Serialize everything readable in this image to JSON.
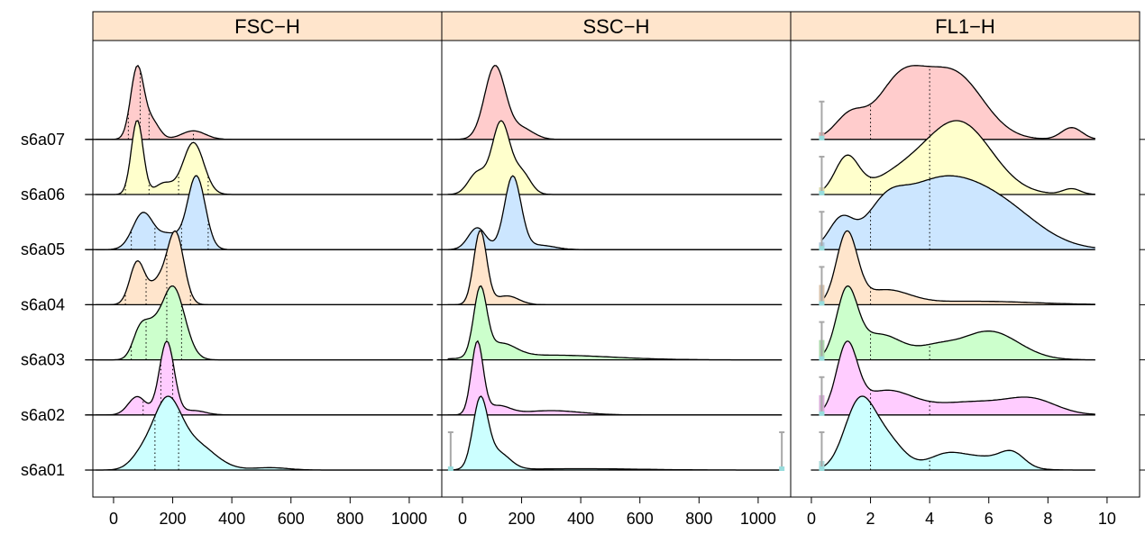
{
  "chart_data": {
    "type": "density-ridgeline",
    "strip_color": "#ffe5cc",
    "rows": [
      "s6a01",
      "s6a02",
      "s6a03",
      "s6a04",
      "s6a05",
      "s6a06",
      "s6a07"
    ],
    "row_colors": {
      "s6a01": "#ccffff",
      "s6a02": "#ffccff",
      "s6a03": "#ccffcc",
      "s6a04": "#ffe5cc",
      "s6a05": "#cce6ff",
      "s6a06": "#ffffcc",
      "s6a07": "#ffcccc"
    },
    "panels": [
      {
        "name": "FSC−H",
        "xlim": [
          -70,
          1110
        ],
        "xticks": [
          0,
          200,
          400,
          600,
          800,
          1000
        ],
        "x_range": [
          -60,
          1080
        ],
        "rows": {
          "s6a01": {
            "peaks": [
              [
                180,
                1.0,
                45
              ],
              [
                270,
                0.45,
                70
              ],
              [
                100,
                0.25,
                40
              ],
              [
                530,
                0.04,
                60
              ]
            ],
            "quantiles": [
              140,
              220
            ]
          },
          "s6a02": {
            "peaks": [
              [
                180,
                1.0,
                25
              ],
              [
                80,
                0.25,
                30
              ],
              [
                270,
                0.06,
                40
              ]
            ],
            "quantiles": [
              100,
              160,
              200
            ]
          },
          "s6a03": {
            "peaks": [
              [
                200,
                1.0,
                40
              ],
              [
                90,
                0.4,
                25
              ],
              [
                130,
                0.25,
                25
              ]
            ],
            "quantiles": [
              60,
              110,
              180,
              230
            ]
          },
          "s6a04": {
            "peaks": [
              [
                210,
                1.0,
                28
              ],
              [
                80,
                0.6,
                25
              ],
              [
                150,
                0.3,
                30
              ]
            ],
            "quantiles": [
              40,
              110,
              180,
              260
            ]
          },
          "s6a05": {
            "peaks": [
              [
                280,
                1.0,
                30
              ],
              [
                100,
                0.5,
                35
              ],
              [
                190,
                0.2,
                35
              ]
            ],
            "quantiles": [
              60,
              140,
              230,
              320
            ]
          },
          "s6a06": {
            "peaks": [
              [
                80,
                1.0,
                20
              ],
              [
                270,
                0.7,
                35
              ],
              [
                170,
                0.15,
                30
              ]
            ],
            "quantiles": [
              40,
              120,
              220,
              320
            ]
          },
          "s6a07": {
            "peaks": [
              [
                80,
                1.0,
                22
              ],
              [
                130,
                0.25,
                25
              ],
              [
                270,
                0.12,
                40
              ]
            ],
            "quantiles": [
              50,
              90,
              120,
              270
            ]
          }
        }
      },
      {
        "name": "SSC−H",
        "xlim": [
          -70,
          1110
        ],
        "xticks": [
          0,
          200,
          400,
          600,
          800,
          1000
        ],
        "x_range": [
          -50,
          1080
        ],
        "rows": {
          "s6a01": {
            "peaks": [
              [
                60,
                1.0,
                25
              ],
              [
                120,
                0.25,
                40
              ],
              [
                400,
                0.02,
                200
              ]
            ],
            "quantiles": []
          },
          "s6a02": {
            "peaks": [
              [
                50,
                1.0,
                20
              ],
              [
                120,
                0.12,
                40
              ],
              [
                300,
                0.06,
                100
              ]
            ],
            "quantiles": []
          },
          "s6a03": {
            "peaks": [
              [
                60,
                1.0,
                22
              ],
              [
                130,
                0.2,
                50
              ],
              [
                300,
                0.07,
                200
              ]
            ],
            "quantiles": []
          },
          "s6a04": {
            "peaks": [
              [
                60,
                1.0,
                22
              ],
              [
                150,
                0.12,
                40
              ]
            ],
            "quantiles": []
          },
          "s6a05": {
            "peaks": [
              [
                170,
                1.0,
                28
              ],
              [
                50,
                0.3,
                30
              ],
              [
                260,
                0.06,
                50
              ]
            ],
            "quantiles": []
          },
          "s6a06": {
            "peaks": [
              [
                130,
                1.0,
                30
              ],
              [
                50,
                0.3,
                30
              ],
              [
                200,
                0.3,
                30
              ]
            ],
            "quantiles": []
          },
          "s6a07": {
            "peaks": [
              [
                110,
                1.0,
                35
              ],
              [
                200,
                0.15,
                40
              ]
            ],
            "quantiles": []
          }
        }
      },
      {
        "name": "FL1−H",
        "xlim": [
          -0.7,
          11.1
        ],
        "xticks": [
          0,
          2,
          4,
          6,
          8,
          10
        ],
        "x_range": [
          0.35,
          9.6
        ],
        "rows": {
          "s6a01": {
            "peaks": [
              [
                1.6,
                1.0,
                0.5
              ],
              [
                2.5,
                0.5,
                0.6
              ],
              [
                4.5,
                0.2,
                0.6
              ],
              [
                5.8,
                0.2,
                0.9
              ],
              [
                6.8,
                0.2,
                0.4
              ]
            ],
            "quantiles": [
              2,
              4
            ]
          },
          "s6a02": {
            "peaks": [
              [
                1.2,
                1.0,
                0.35
              ],
              [
                2.5,
                0.35,
                0.9
              ],
              [
                5.5,
                0.2,
                1.5
              ],
              [
                7.5,
                0.18,
                0.8
              ]
            ],
            "quantiles": [
              2,
              4
            ]
          },
          "s6a03": {
            "peaks": [
              [
                1.2,
                1.0,
                0.35
              ],
              [
                2.3,
                0.4,
                0.8
              ],
              [
                6.0,
                0.45,
                1.0
              ],
              [
                4.2,
                0.15,
                0.6
              ]
            ],
            "quantiles": [
              2,
              4
            ]
          },
          "s6a04": {
            "peaks": [
              [
                1.2,
                1.0,
                0.35
              ],
              [
                2.5,
                0.2,
                0.8
              ],
              [
                5.5,
                0.05,
                2.0
              ]
            ],
            "quantiles": [
              2
            ]
          },
          "s6a05": {
            "peaks": [
              [
                4.2,
                1.0,
                1.5
              ],
              [
                1.0,
                0.4,
                0.4
              ],
              [
                6.5,
                0.5,
                1.3
              ],
              [
                2.5,
                0.35,
                0.6
              ]
            ],
            "quantiles": [
              2,
              4
            ]
          },
          "s6a06": {
            "peaks": [
              [
                5.0,
                1.0,
                1.1
              ],
              [
                1.2,
                0.5,
                0.4
              ],
              [
                3.0,
                0.25,
                1.0
              ],
              [
                8.8,
                0.08,
                0.3
              ]
            ],
            "quantiles": [
              2,
              4
            ]
          },
          "s6a07": {
            "peaks": [
              [
                4.8,
                1.0,
                1.0
              ],
              [
                3.0,
                0.85,
                0.8
              ],
              [
                1.3,
                0.35,
                0.5
              ],
              [
                8.8,
                0.18,
                0.35
              ]
            ],
            "quantiles": [
              2,
              4
            ]
          }
        }
      }
    ]
  }
}
